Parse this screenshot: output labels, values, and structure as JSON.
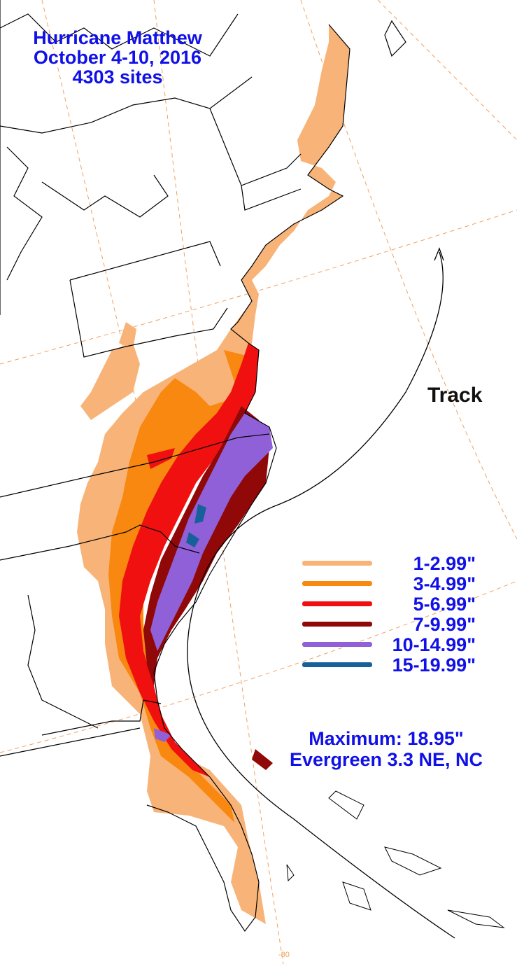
{
  "title": {
    "line1": "Hurricane Matthew",
    "line2": "October 4-10, 2016",
    "line3": "4303 sites"
  },
  "track_label": "Track",
  "legend": [
    {
      "label": "1-2.99\"",
      "color": "#f8b478"
    },
    {
      "label": "3-4.99\"",
      "color": "#f88810"
    },
    {
      "label": "5-6.99\"",
      "color": "#f01010"
    },
    {
      "label": "7-9.99\"",
      "color": "#900808"
    },
    {
      "label": "10-14.99\"",
      "color": "#9060d8"
    },
    {
      "label": "15-19.99\"",
      "color": "#18609a"
    }
  ],
  "maximum": {
    "line1": "Maximum: 18.95\"",
    "line2": "Evergreen 3.3 NE, NC"
  },
  "longitude_label": "-80"
}
